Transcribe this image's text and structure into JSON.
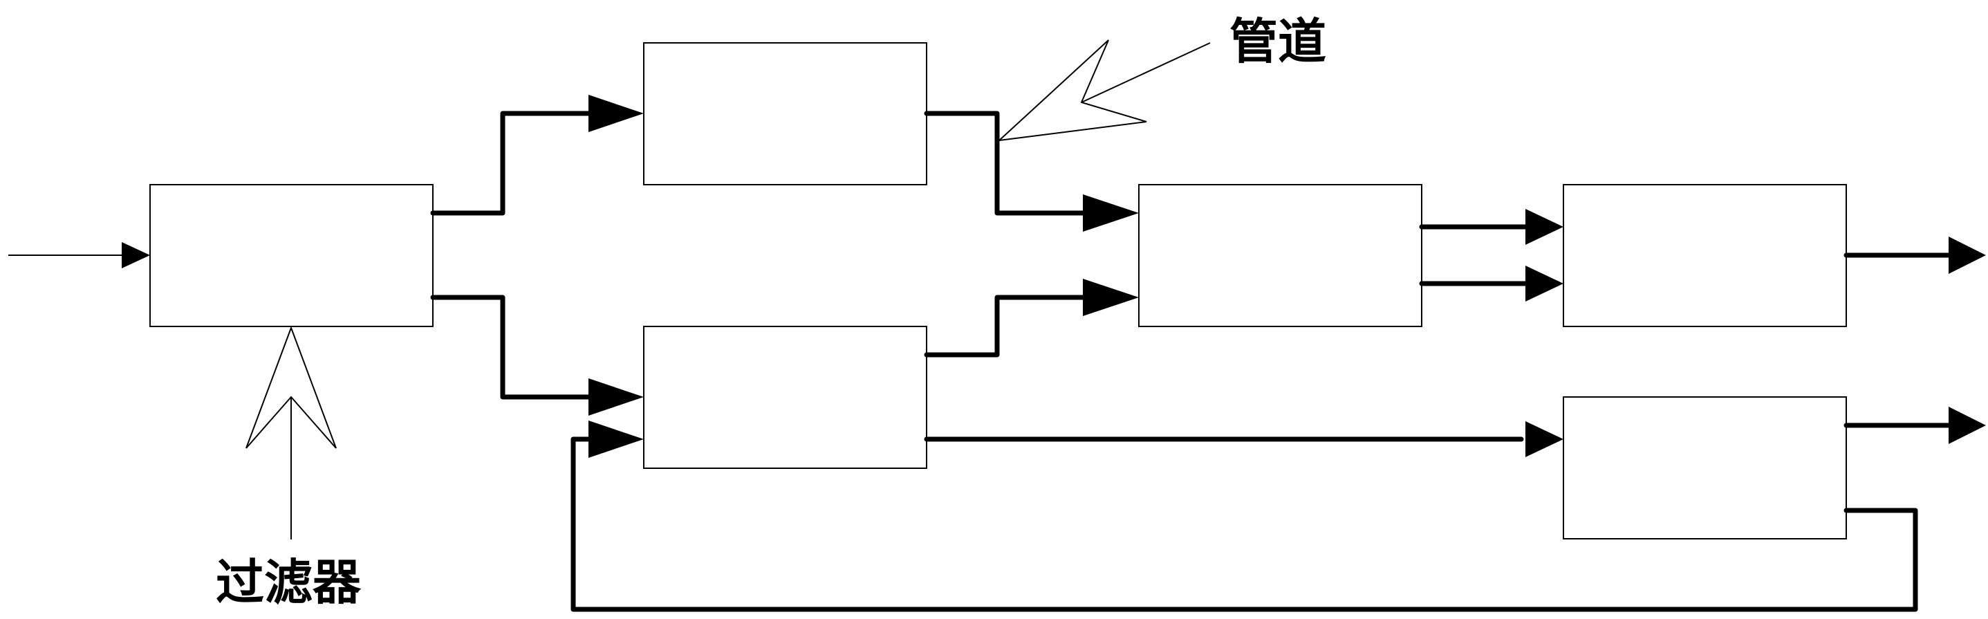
{
  "labels": {
    "filter": "过滤器",
    "pipe": "管道"
  },
  "colors": {
    "line": "#000000",
    "background": "#ffffff"
  }
}
